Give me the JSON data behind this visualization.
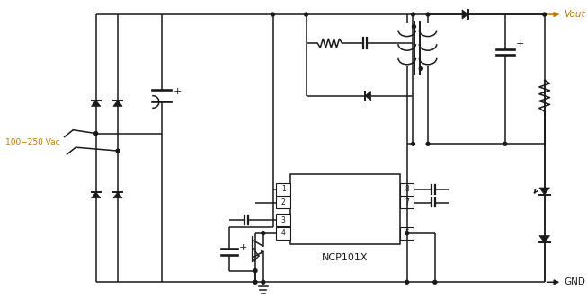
{
  "bg_color": "#ffffff",
  "lc": "#1a1a1a",
  "vout_color": "#b87800",
  "input_label": "100−250 Vac",
  "ic_label": "NCP101X",
  "vout_label": "Vout",
  "gnd_label": "GND",
  "figsize": [
    6.53,
    3.42
  ],
  "dpi": 100,
  "lw": 1.1
}
